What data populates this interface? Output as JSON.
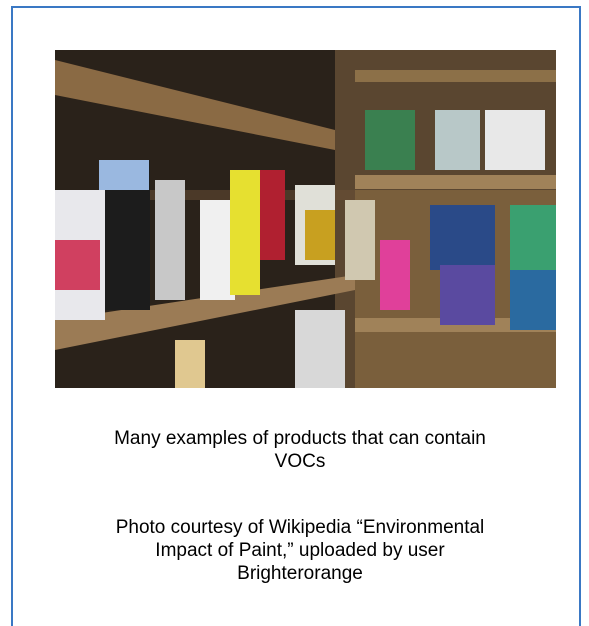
{
  "caption": [
    "Many examples of products that can contain",
    "VOCs"
  ],
  "credit": [
    "Photo courtesy of Wikipedia “Environmental",
    "Impact of Paint,” uploaded by user",
    "Brighterorange"
  ]
}
